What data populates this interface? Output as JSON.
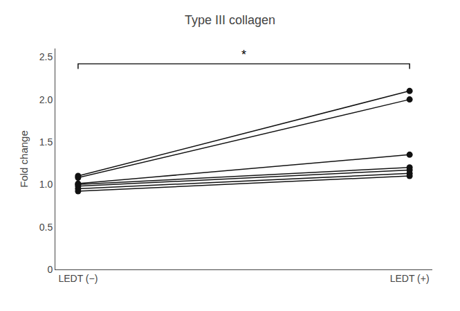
{
  "chart_data": {
    "type": "line",
    "title": "Type III collagen",
    "ylabel": "Fold change",
    "categories": [
      "LEDT (−)",
      "LEDT (+)"
    ],
    "series": [
      {
        "values": [
          1.1,
          2.1
        ]
      },
      {
        "values": [
          1.08,
          2.0
        ]
      },
      {
        "values": [
          1.01,
          1.35
        ]
      },
      {
        "values": [
          1.0,
          1.2
        ]
      },
      {
        "values": [
          0.98,
          1.17
        ]
      },
      {
        "values": [
          0.95,
          1.13
        ]
      },
      {
        "values": [
          0.92,
          1.1
        ]
      }
    ],
    "color": "#111111",
    "marker": "circle",
    "ylim": [
      0,
      2.6
    ],
    "yticks": [
      0,
      0.5,
      {
        "value": 1.0,
        "label": "1.0"
      },
      1.5,
      {
        "value": 2.0,
        "label": "2.0"
      },
      2.5
    ],
    "grid": false,
    "annotations": [
      {
        "text": "*",
        "from": "LEDT (−)",
        "to": "LEDT (+)",
        "y": 2.42,
        "drop": 0.06
      }
    ]
  }
}
